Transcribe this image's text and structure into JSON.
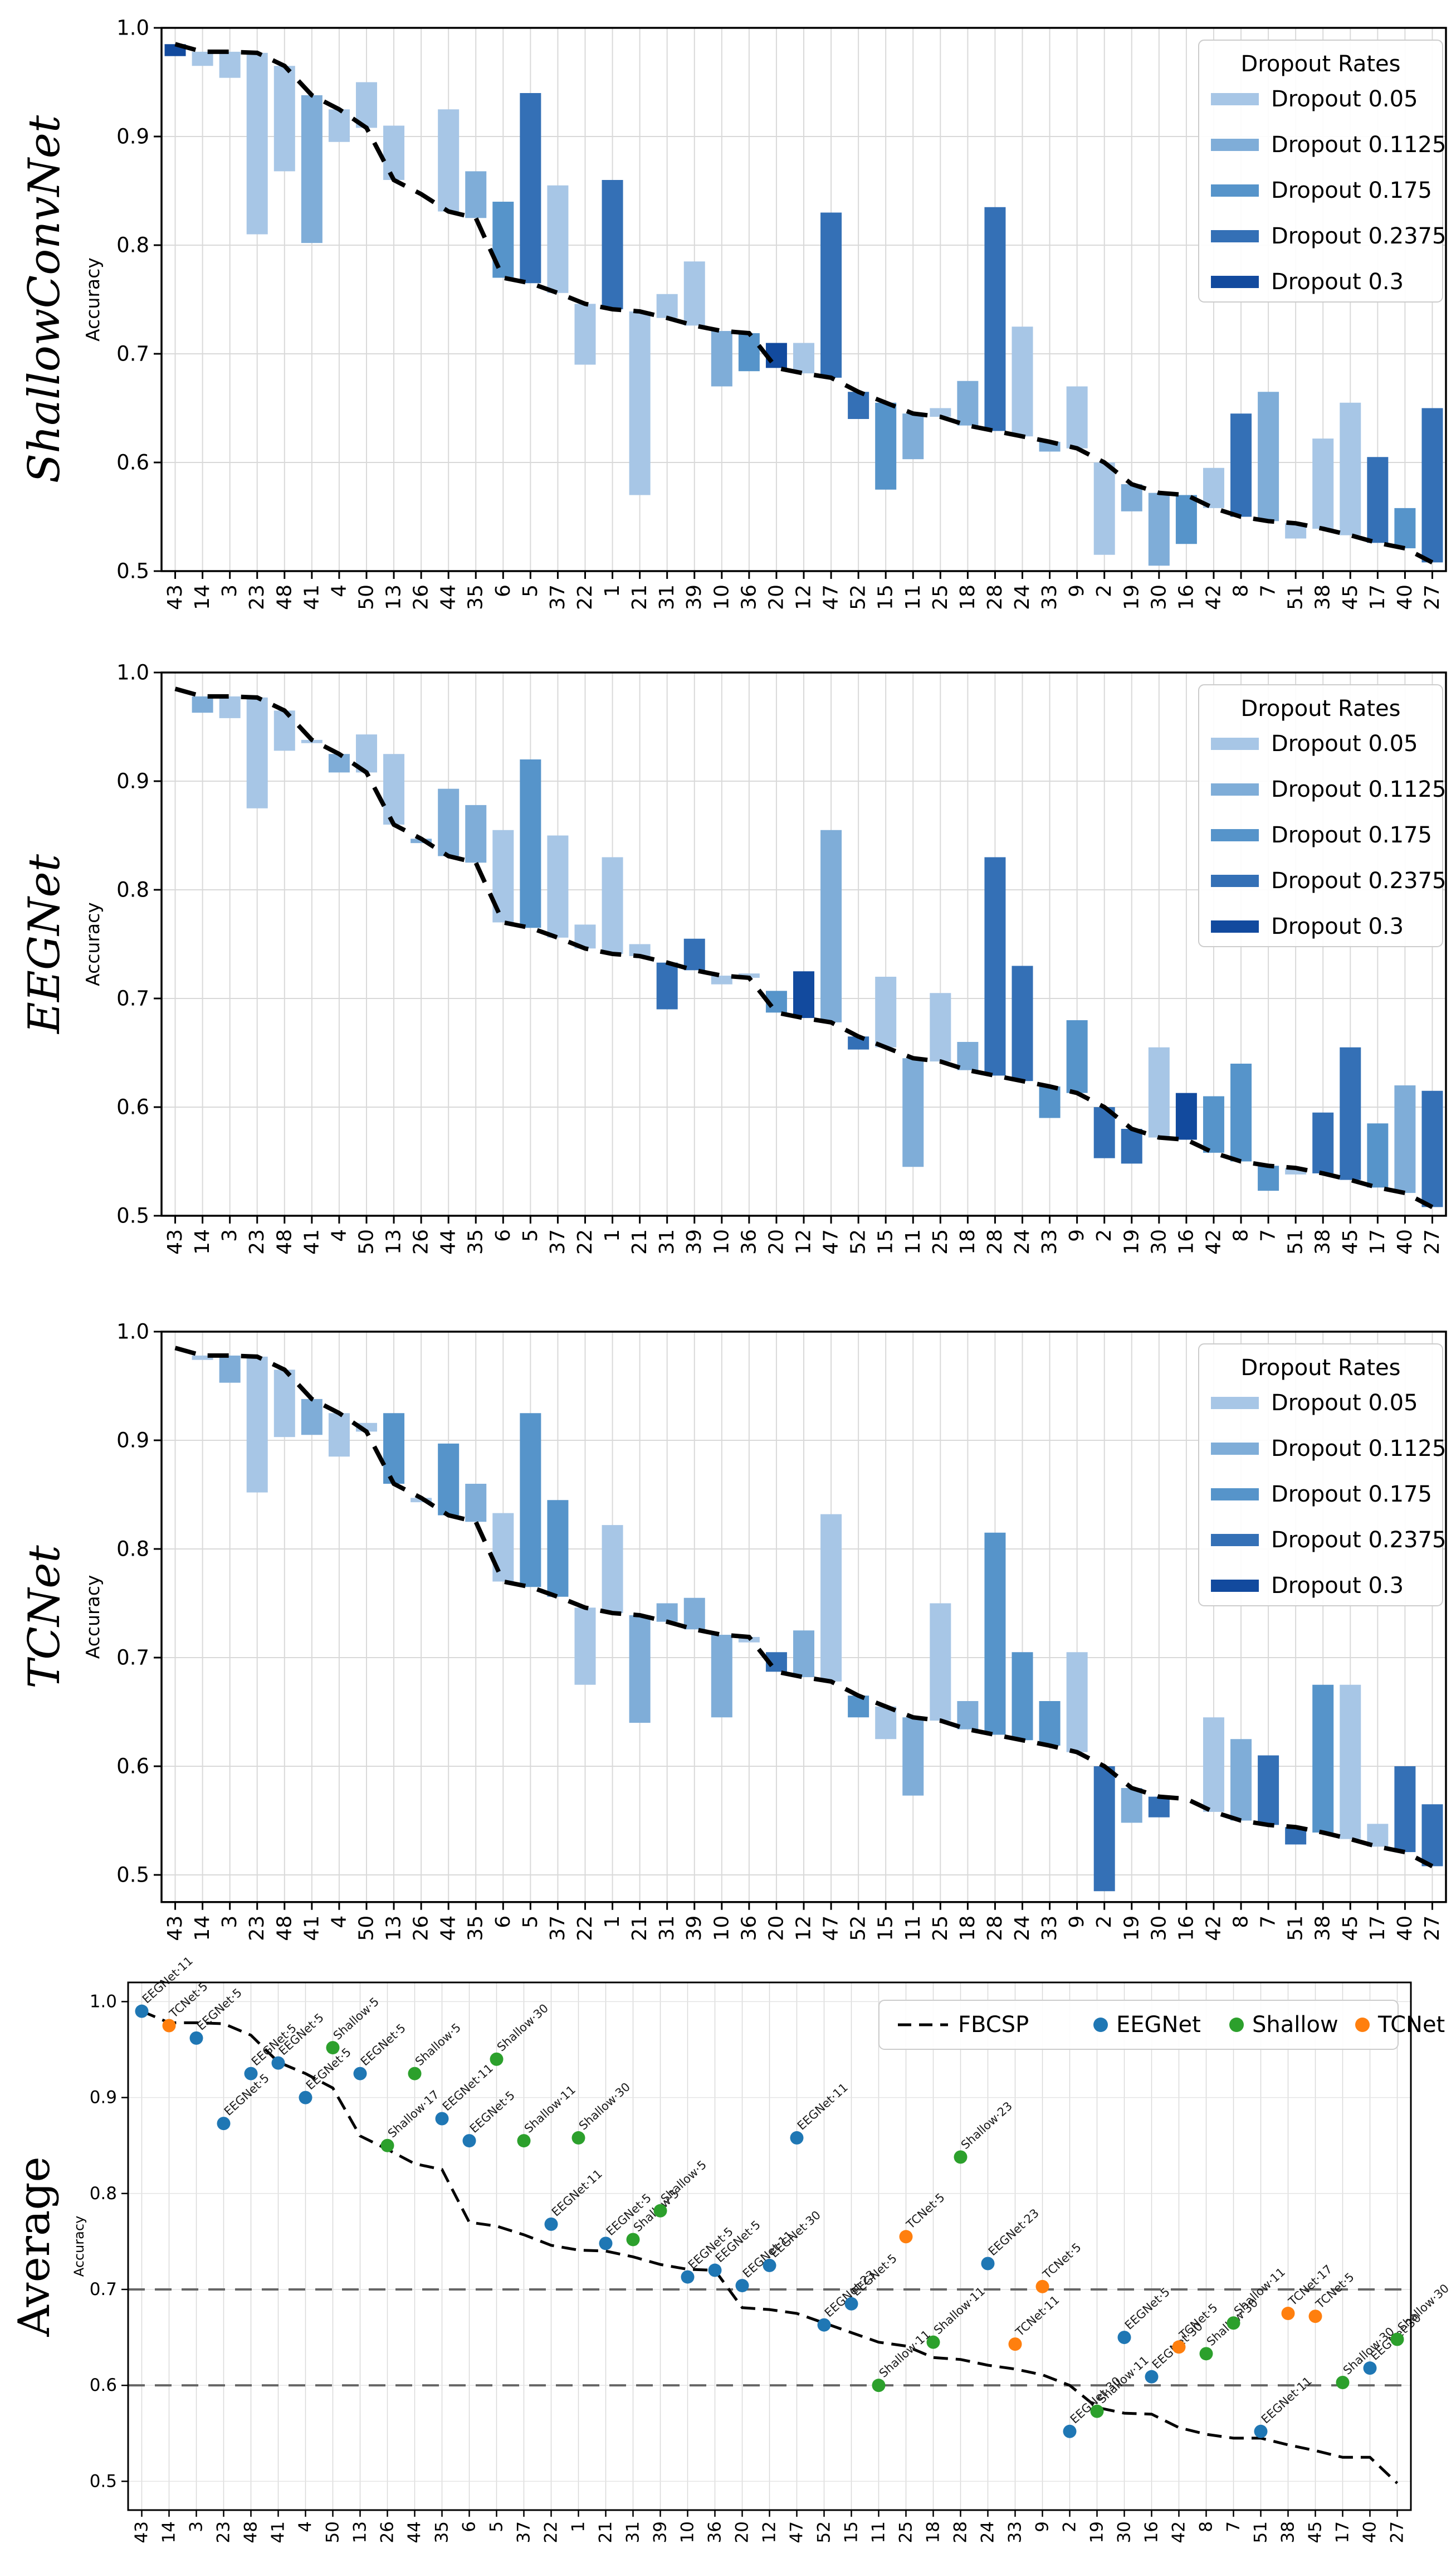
{
  "figure": {
    "ylabel": "Accuracy",
    "yticks": [
      "1.0",
      "0.9",
      "0.8",
      "0.7",
      "0.6",
      "0.5"
    ],
    "legend_title": "Dropout Rates",
    "dropout_levels": [
      "0.05",
      "0.1125",
      "0.175",
      "0.2375",
      "0.3"
    ],
    "dropout_legend_labels": [
      "Dropout 0.05",
      "Dropout 0.1125",
      "Dropout 0.175",
      "Dropout 0.2375",
      "Dropout 0.3"
    ],
    "avg_legend_labels": [
      "FBCSP",
      "EEGNet",
      "Shallow",
      "TCNet"
    ],
    "colors": {
      "dropout": {
        "0.05": "#a7c6e6",
        "0.1125": "#7fadd8",
        "0.175": "#5694ca",
        "0.2375": "#3470b6",
        "0.3": "#124a9e"
      },
      "models": {
        "EEGNet": "#1f77b4",
        "Shallow": "#2ca02c",
        "TCNet": "#ff7f0e"
      },
      "fbcsp_line": "#000000",
      "threshold_lines": "#666666",
      "grid": "#d9d9d9"
    }
  },
  "chart_data": {
    "type": "bar",
    "subjects": [
      "43",
      "14",
      "3",
      "23",
      "48",
      "41",
      "4",
      "50",
      "13",
      "26",
      "44",
      "35",
      "6",
      "5",
      "37",
      "22",
      "1",
      "21",
      "31",
      "39",
      "10",
      "36",
      "20",
      "12",
      "47",
      "52",
      "15",
      "11",
      "25",
      "18",
      "28",
      "24",
      "33",
      "9",
      "2",
      "19",
      "30",
      "16",
      "42",
      "8",
      "7",
      "51",
      "38",
      "45",
      "17",
      "40",
      "27"
    ],
    "fbcsp": [
      0.985,
      0.978,
      0.978,
      0.977,
      0.965,
      0.938,
      0.925,
      0.908,
      0.86,
      0.847,
      0.831,
      0.825,
      0.77,
      0.765,
      0.756,
      0.746,
      0.741,
      0.739,
      0.733,
      0.726,
      0.721,
      0.719,
      0.687,
      0.682,
      0.678,
      0.665,
      0.655,
      0.645,
      0.642,
      0.634,
      0.629,
      0.624,
      0.619,
      0.613,
      0.6,
      0.58,
      0.572,
      0.57,
      0.558,
      0.55,
      0.546,
      0.544,
      0.539,
      0.533,
      0.526,
      0.521,
      0.508
    ],
    "fbcsp_average": [
      0.99,
      0.978,
      0.978,
      0.977,
      0.965,
      0.937,
      0.925,
      0.91,
      0.86,
      0.846,
      0.831,
      0.825,
      0.77,
      0.766,
      0.757,
      0.746,
      0.741,
      0.74,
      0.734,
      0.726,
      0.721,
      0.72,
      0.681,
      0.679,
      0.675,
      0.665,
      0.655,
      0.645,
      0.641,
      0.629,
      0.627,
      0.621,
      0.617,
      0.611,
      0.6,
      0.577,
      0.571,
      0.57,
      0.556,
      0.549,
      0.545,
      0.545,
      0.538,
      0.532,
      0.525,
      0.525,
      0.498
    ],
    "panels": [
      {
        "title": "ShallowConvNet",
        "type": "bar",
        "ylim": [
          0.5,
          1.0
        ],
        "bars": [
          {
            "v": 0.974,
            "d": "0.3"
          },
          {
            "v": 0.965,
            "d": "0.05"
          },
          {
            "v": 0.954,
            "d": "0.05"
          },
          {
            "v": 0.81,
            "d": "0.05"
          },
          {
            "v": 0.868,
            "d": "0.05"
          },
          {
            "v": 0.802,
            "d": "0.1125"
          },
          {
            "v": 0.895,
            "d": "0.05"
          },
          {
            "v": 0.95,
            "d": "0.05"
          },
          {
            "v": 0.91,
            "d": "0.05"
          },
          null,
          {
            "v": 0.925,
            "d": "0.05"
          },
          {
            "v": 0.868,
            "d": "0.1125"
          },
          {
            "v": 0.84,
            "d": "0.175"
          },
          {
            "v": 0.94,
            "d": "0.2375"
          },
          {
            "v": 0.855,
            "d": "0.05"
          },
          {
            "v": 0.69,
            "d": "0.05"
          },
          {
            "v": 0.86,
            "d": "0.2375"
          },
          {
            "v": 0.57,
            "d": "0.05"
          },
          {
            "v": 0.755,
            "d": "0.05"
          },
          {
            "v": 0.785,
            "d": "0.05"
          },
          {
            "v": 0.67,
            "d": "0.1125"
          },
          {
            "v": 0.684,
            "d": "0.175"
          },
          {
            "v": 0.71,
            "d": "0.3"
          },
          {
            "v": 0.71,
            "d": "0.05"
          },
          {
            "v": 0.83,
            "d": "0.2375"
          },
          {
            "v": 0.64,
            "d": "0.2375"
          },
          {
            "v": 0.575,
            "d": "0.175"
          },
          {
            "v": 0.603,
            "d": "0.1125"
          },
          {
            "v": 0.65,
            "d": "0.05"
          },
          {
            "v": 0.675,
            "d": "0.1125"
          },
          {
            "v": 0.835,
            "d": "0.2375"
          },
          {
            "v": 0.725,
            "d": "0.05"
          },
          {
            "v": 0.61,
            "d": "0.1125"
          },
          {
            "v": 0.67,
            "d": "0.05"
          },
          {
            "v": 0.515,
            "d": "0.05"
          },
          {
            "v": 0.555,
            "d": "0.1125"
          },
          {
            "v": 0.505,
            "d": "0.1125"
          },
          {
            "v": 0.525,
            "d": "0.175"
          },
          {
            "v": 0.595,
            "d": "0.05"
          },
          {
            "v": 0.645,
            "d": "0.2375"
          },
          {
            "v": 0.665,
            "d": "0.1125"
          },
          {
            "v": 0.53,
            "d": "0.05"
          },
          {
            "v": 0.622,
            "d": "0.05"
          },
          {
            "v": 0.655,
            "d": "0.05"
          },
          {
            "v": 0.605,
            "d": "0.2375"
          },
          {
            "v": 0.558,
            "d": "0.175"
          },
          {
            "v": 0.65,
            "d": "0.2375"
          }
        ]
      },
      {
        "title": "EEGNet",
        "type": "bar",
        "ylim": [
          0.5,
          1.0
        ],
        "bars": [
          null,
          {
            "v": 0.963,
            "d": "0.1125"
          },
          {
            "v": 0.958,
            "d": "0.05"
          },
          {
            "v": 0.875,
            "d": "0.05"
          },
          {
            "v": 0.928,
            "d": "0.05"
          },
          {
            "v": 0.935,
            "d": "0.05"
          },
          {
            "v": 0.908,
            "d": "0.1125"
          },
          {
            "v": 0.943,
            "d": "0.05"
          },
          {
            "v": 0.925,
            "d": "0.05"
          },
          {
            "v": 0.843,
            "d": "0.1125"
          },
          {
            "v": 0.893,
            "d": "0.1125"
          },
          {
            "v": 0.878,
            "d": "0.1125"
          },
          {
            "v": 0.855,
            "d": "0.05"
          },
          {
            "v": 0.92,
            "d": "0.175"
          },
          {
            "v": 0.85,
            "d": "0.05"
          },
          {
            "v": 0.768,
            "d": "0.05"
          },
          {
            "v": 0.83,
            "d": "0.05"
          },
          {
            "v": 0.75,
            "d": "0.05"
          },
          {
            "v": 0.69,
            "d": "0.2375"
          },
          {
            "v": 0.755,
            "d": "0.2375"
          },
          {
            "v": 0.713,
            "d": "0.05"
          },
          {
            "v": 0.723,
            "d": "0.05"
          },
          {
            "v": 0.707,
            "d": "0.175"
          },
          {
            "v": 0.725,
            "d": "0.3"
          },
          {
            "v": 0.855,
            "d": "0.1125"
          },
          {
            "v": 0.653,
            "d": "0.2375"
          },
          {
            "v": 0.72,
            "d": "0.05"
          },
          {
            "v": 0.545,
            "d": "0.1125"
          },
          {
            "v": 0.705,
            "d": "0.05"
          },
          {
            "v": 0.66,
            "d": "0.1125"
          },
          {
            "v": 0.83,
            "d": "0.2375"
          },
          {
            "v": 0.73,
            "d": "0.2375"
          },
          {
            "v": 0.59,
            "d": "0.175"
          },
          {
            "v": 0.68,
            "d": "0.175"
          },
          {
            "v": 0.553,
            "d": "0.2375"
          },
          {
            "v": 0.548,
            "d": "0.2375"
          },
          {
            "v": 0.655,
            "d": "0.05"
          },
          {
            "v": 0.613,
            "d": "0.3"
          },
          {
            "v": 0.61,
            "d": "0.175"
          },
          {
            "v": 0.64,
            "d": "0.175"
          },
          {
            "v": 0.523,
            "d": "0.175"
          },
          {
            "v": 0.538,
            "d": "0.05"
          },
          {
            "v": 0.595,
            "d": "0.2375"
          },
          {
            "v": 0.655,
            "d": "0.2375"
          },
          {
            "v": 0.585,
            "d": "0.175"
          },
          {
            "v": 0.62,
            "d": "0.1125"
          },
          {
            "v": 0.615,
            "d": "0.2375"
          }
        ]
      },
      {
        "title": "TCNet",
        "type": "bar",
        "ylim": [
          0.475,
          1.0
        ],
        "bars": [
          null,
          {
            "v": 0.974,
            "d": "0.05"
          },
          {
            "v": 0.953,
            "d": "0.1125"
          },
          {
            "v": 0.852,
            "d": "0.05"
          },
          {
            "v": 0.903,
            "d": "0.05"
          },
          {
            "v": 0.905,
            "d": "0.1125"
          },
          {
            "v": 0.885,
            "d": "0.05"
          },
          {
            "v": 0.916,
            "d": "0.05"
          },
          {
            "v": 0.925,
            "d": "0.175"
          },
          {
            "v": 0.843,
            "d": "0.05"
          },
          {
            "v": 0.897,
            "d": "0.175"
          },
          {
            "v": 0.86,
            "d": "0.1125"
          },
          {
            "v": 0.833,
            "d": "0.05"
          },
          {
            "v": 0.925,
            "d": "0.175"
          },
          {
            "v": 0.845,
            "d": "0.175"
          },
          {
            "v": 0.675,
            "d": "0.05"
          },
          {
            "v": 0.822,
            "d": "0.05"
          },
          {
            "v": 0.64,
            "d": "0.1125"
          },
          {
            "v": 0.75,
            "d": "0.1125"
          },
          {
            "v": 0.755,
            "d": "0.1125"
          },
          {
            "v": 0.645,
            "d": "0.1125"
          },
          {
            "v": 0.714,
            "d": "0.05"
          },
          {
            "v": 0.705,
            "d": "0.2375"
          },
          {
            "v": 0.725,
            "d": "0.1125"
          },
          {
            "v": 0.832,
            "d": "0.05"
          },
          {
            "v": 0.645,
            "d": "0.175"
          },
          {
            "v": 0.625,
            "d": "0.05"
          },
          {
            "v": 0.573,
            "d": "0.1125"
          },
          {
            "v": 0.75,
            "d": "0.05"
          },
          {
            "v": 0.66,
            "d": "0.1125"
          },
          {
            "v": 0.815,
            "d": "0.175"
          },
          {
            "v": 0.705,
            "d": "0.175"
          },
          {
            "v": 0.66,
            "d": "0.175"
          },
          {
            "v": 0.705,
            "d": "0.05"
          },
          {
            "v": 0.485,
            "d": "0.2375"
          },
          {
            "v": 0.548,
            "d": "0.1125"
          },
          {
            "v": 0.553,
            "d": "0.2375"
          },
          null,
          {
            "v": 0.645,
            "d": "0.05"
          },
          {
            "v": 0.625,
            "d": "0.1125"
          },
          {
            "v": 0.61,
            "d": "0.2375"
          },
          {
            "v": 0.528,
            "d": "0.2375"
          },
          {
            "v": 0.675,
            "d": "0.175"
          },
          {
            "v": 0.675,
            "d": "0.05"
          },
          {
            "v": 0.547,
            "d": "0.05"
          },
          {
            "v": 0.6,
            "d": "0.2375"
          },
          {
            "v": 0.565,
            "d": "0.2375"
          }
        ]
      },
      {
        "title": "Average",
        "type": "scatter",
        "ylim": [
          0.47,
          1.02
        ],
        "threshold_lines": [
          0.7,
          0.6
        ],
        "points": [
          {
            "m": "EEGNet",
            "label": "EEGNet·11",
            "v": 0.99
          },
          {
            "m": "TCNet",
            "label": "TCNet·5",
            "v": 0.975
          },
          {
            "m": "EEGNet",
            "label": "EEGNet·5",
            "v": 0.962
          },
          {
            "m": "EEGNet",
            "label": "EEGNet·5",
            "v": 0.873
          },
          {
            "m": "EEGNet",
            "label": "EEGNet·5",
            "v": 0.925
          },
          {
            "m": "EEGNet",
            "label": "EEGNet·5",
            "v": 0.936
          },
          {
            "m": "EEGNet",
            "label": "EEGNet·5",
            "v": 0.9
          },
          {
            "m": "Shallow",
            "label": "Shallow·5",
            "v": 0.952
          },
          {
            "m": "EEGNet",
            "label": "EEGNet·5",
            "v": 0.925
          },
          {
            "m": "Shallow",
            "label": "Shallow·17",
            "v": 0.85
          },
          {
            "m": "Shallow",
            "label": "Shallow·5",
            "v": 0.925
          },
          {
            "m": "EEGNet",
            "label": "EEGNet·11",
            "v": 0.878
          },
          {
            "m": "EEGNet",
            "label": "EEGNet·5",
            "v": 0.855
          },
          {
            "m": "Shallow",
            "label": "Shallow·30",
            "v": 0.94
          },
          {
            "m": "Shallow",
            "label": "Shallow·11",
            "v": 0.855
          },
          {
            "m": "EEGNet",
            "label": "EEGNet·11",
            "v": 0.768
          },
          {
            "m": "Shallow",
            "label": "Shallow·30",
            "v": 0.858
          },
          {
            "m": "EEGNet",
            "label": "EEGNet·5",
            "v": 0.748
          },
          {
            "m": "Shallow",
            "label": "Shallow·5",
            "v": 0.752
          },
          {
            "m": "Shallow",
            "label": "Shallow·5",
            "v": 0.782
          },
          {
            "m": "EEGNet",
            "label": "EEGNet·5",
            "v": 0.713
          },
          {
            "m": "EEGNet",
            "label": "EEGNet·5",
            "v": 0.72
          },
          {
            "m": "EEGNet",
            "label": "EEGNet·11",
            "v": 0.704
          },
          {
            "m": "EEGNet",
            "label": "EEGNet·30",
            "v": 0.725
          },
          {
            "m": "EEGNet",
            "label": "EEGNet·11",
            "v": 0.858
          },
          {
            "m": "EEGNet",
            "label": "EEGNet·23",
            "v": 0.663
          },
          {
            "m": "EEGNet",
            "label": "EEGNet·5",
            "v": 0.685
          },
          {
            "m": "Shallow",
            "label": "Shallow·11",
            "v": 0.6
          },
          {
            "m": "TCNet",
            "label": "TCNet·5",
            "v": 0.755
          },
          {
            "m": "Shallow",
            "label": "Shallow·11",
            "v": 0.645
          },
          {
            "m": "Shallow",
            "label": "Shallow·23",
            "v": 0.838
          },
          {
            "m": "EEGNet",
            "label": "EEGNet·23",
            "v": 0.727
          },
          {
            "m": "TCNet",
            "label": "TCNet·11",
            "v": 0.643
          },
          {
            "m": "TCNet",
            "label": "TCNet·5",
            "v": 0.703
          },
          {
            "m": "EEGNet",
            "label": "EEGNet·30",
            "v": 0.552
          },
          {
            "m": "Shallow",
            "label": "Shallow·11",
            "v": 0.573
          },
          {
            "m": "EEGNet",
            "label": "EEGNet·5",
            "v": 0.65
          },
          {
            "m": "EEGNet",
            "label": "EEGNet·30",
            "v": 0.609
          },
          {
            "m": "TCNet",
            "label": "TCNet·5",
            "v": 0.64
          },
          {
            "m": "Shallow",
            "label": "Shallow·30",
            "v": 0.633
          },
          {
            "m": "Shallow",
            "label": "Shallow·11",
            "v": 0.665
          },
          {
            "m": "EEGNet",
            "label": "EEGNet·11",
            "v": 0.552
          },
          {
            "m": "TCNet",
            "label": "TCNet·17",
            "v": 0.675
          },
          {
            "m": "TCNet",
            "label": "TCNet·5",
            "v": 0.672
          },
          {
            "m": "Shallow",
            "label": "Shallow·30",
            "v": 0.603
          },
          {
            "m": "EEGNet",
            "label": "EEGNet·30",
            "v": 0.618
          },
          {
            "m": "Shallow",
            "label": "Shallow·30",
            "v": 0.648
          }
        ]
      }
    ]
  }
}
